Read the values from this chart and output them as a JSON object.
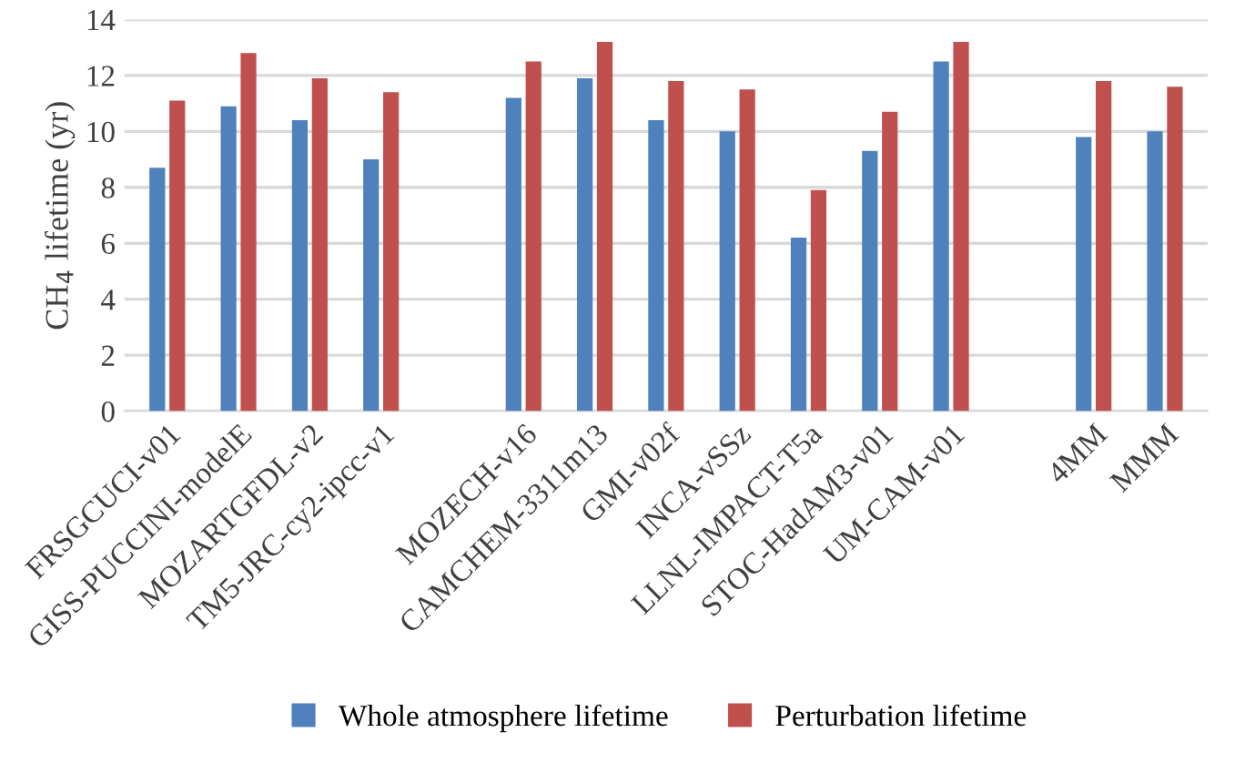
{
  "chart_data": {
    "type": "bar",
    "ylabel": "CH$_{4}$ lifetime (yr)",
    "categories": [
      "FRSGCUCI-v01",
      "GISS-PUCCINI-modelE",
      "MOZARTGFDL-v2",
      "TM5-JRC-cy2-ipcc-v1",
      null,
      "MOZECH-v16",
      "CAMCHEM-3311m13",
      "GMI-v02f",
      "INCA-vSSz",
      "LLNL-IMPACT-T5a",
      "STOC-HadAM3-v01",
      "UM-CAM-v01",
      null,
      "4MM",
      "MMM"
    ],
    "series": [
      {
        "name": "Whole atmosphere lifetime",
        "color": "#4f81bd",
        "values": [
          8.7,
          10.9,
          10.4,
          9.0,
          null,
          11.2,
          11.9,
          10.4,
          10.0,
          6.2,
          9.3,
          12.5,
          null,
          9.8,
          10.0
        ]
      },
      {
        "name": "Perturbation lifetime",
        "color": "#c0504d",
        "values": [
          11.1,
          12.8,
          11.9,
          11.4,
          null,
          12.5,
          13.2,
          11.8,
          11.5,
          7.9,
          10.7,
          13.2,
          null,
          11.8,
          11.6
        ]
      }
    ],
    "ylim": [
      0,
      14
    ],
    "yticks": [
      0,
      2,
      4,
      6,
      8,
      10,
      12,
      14
    ],
    "grid": "y",
    "legend": "bottom"
  }
}
